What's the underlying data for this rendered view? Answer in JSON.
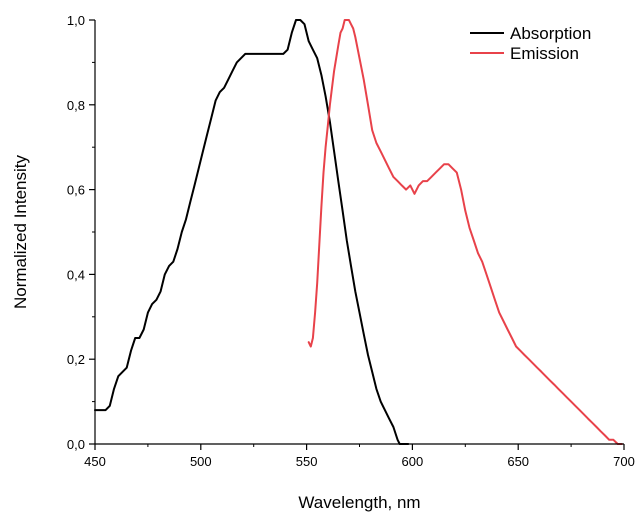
{
  "chart_data": {
    "type": "line",
    "title": "",
    "xlabel": "Wavelength, nm",
    "ylabel": "Normalized Intensity",
    "xlim": [
      450,
      700
    ],
    "ylim": [
      0,
      1.0
    ],
    "x_ticks": [
      450,
      500,
      550,
      600,
      650,
      700
    ],
    "x_tick_labels": [
      "450",
      "500",
      "550",
      "600",
      "650",
      "700"
    ],
    "y_ticks": [
      0,
      0.2,
      0.4,
      0.6,
      0.8,
      1.0
    ],
    "y_tick_labels": [
      "0,0",
      "0,2",
      "0,4",
      "0,6",
      "0,8",
      "1,0"
    ],
    "grid": false,
    "legend_position": "top-right",
    "series": [
      {
        "name": "Absorption",
        "color": "#000000",
        "x": [
          450,
          452,
          455,
          457,
          459,
          461,
          463,
          465,
          467,
          469,
          471,
          473,
          475,
          477,
          479,
          481,
          483,
          485,
          487,
          489,
          491,
          493,
          495,
          497,
          499,
          501,
          503,
          505,
          507,
          509,
          511,
          513,
          515,
          517,
          519,
          521,
          523,
          525,
          527,
          530,
          533,
          536,
          539,
          541,
          543,
          545,
          547,
          549,
          551,
          553,
          555,
          557,
          559,
          561,
          563,
          565,
          567,
          569,
          571,
          573,
          575,
          577,
          579,
          581,
          583,
          585,
          587,
          589,
          591,
          593,
          594,
          595,
          597,
          598
        ],
        "values": [
          0.08,
          0.08,
          0.08,
          0.09,
          0.13,
          0.16,
          0.17,
          0.18,
          0.22,
          0.25,
          0.25,
          0.27,
          0.31,
          0.33,
          0.34,
          0.36,
          0.4,
          0.42,
          0.43,
          0.46,
          0.5,
          0.53,
          0.57,
          0.61,
          0.65,
          0.69,
          0.73,
          0.77,
          0.81,
          0.83,
          0.84,
          0.86,
          0.88,
          0.9,
          0.91,
          0.92,
          0.92,
          0.92,
          0.92,
          0.92,
          0.92,
          0.92,
          0.92,
          0.93,
          0.97,
          1.0,
          1.0,
          0.99,
          0.95,
          0.93,
          0.91,
          0.87,
          0.82,
          0.76,
          0.69,
          0.62,
          0.55,
          0.48,
          0.42,
          0.36,
          0.31,
          0.26,
          0.21,
          0.17,
          0.13,
          0.1,
          0.08,
          0.06,
          0.04,
          0.01,
          0.0,
          0.0,
          0.0,
          0.0
        ]
      },
      {
        "name": "Emission",
        "color": "#e8424a",
        "x": [
          551,
          552,
          553,
          554,
          555,
          556,
          557,
          558,
          559,
          560,
          561,
          562,
          563,
          564,
          565,
          566,
          567,
          568,
          569,
          570,
          571,
          572,
          573,
          575,
          577,
          579,
          581,
          583,
          585,
          587,
          589,
          591,
          593,
          595,
          597,
          599,
          601,
          603,
          605,
          607,
          609,
          611,
          613,
          615,
          617,
          619,
          621,
          623,
          625,
          627,
          629,
          631,
          633,
          635,
          637,
          639,
          641,
          643,
          645,
          647,
          649,
          651,
          653,
          655,
          657,
          659,
          661,
          663,
          665,
          667,
          669,
          671,
          673,
          675,
          677,
          679,
          681,
          683,
          685,
          687,
          689,
          691,
          693,
          695,
          697,
          699
        ],
        "values": [
          0.24,
          0.23,
          0.25,
          0.31,
          0.38,
          0.47,
          0.56,
          0.64,
          0.7,
          0.75,
          0.8,
          0.84,
          0.88,
          0.91,
          0.94,
          0.97,
          0.98,
          1.0,
          1.0,
          1.0,
          0.99,
          0.98,
          0.96,
          0.91,
          0.86,
          0.8,
          0.74,
          0.71,
          0.69,
          0.67,
          0.65,
          0.63,
          0.62,
          0.61,
          0.6,
          0.61,
          0.59,
          0.61,
          0.62,
          0.62,
          0.63,
          0.64,
          0.65,
          0.66,
          0.66,
          0.65,
          0.64,
          0.6,
          0.55,
          0.51,
          0.48,
          0.45,
          0.43,
          0.4,
          0.37,
          0.34,
          0.31,
          0.29,
          0.27,
          0.25,
          0.23,
          0.22,
          0.21,
          0.2,
          0.19,
          0.18,
          0.17,
          0.16,
          0.15,
          0.14,
          0.13,
          0.12,
          0.11,
          0.1,
          0.09,
          0.08,
          0.07,
          0.06,
          0.05,
          0.04,
          0.03,
          0.02,
          0.01,
          0.01,
          0.0,
          0.0
        ]
      }
    ]
  }
}
